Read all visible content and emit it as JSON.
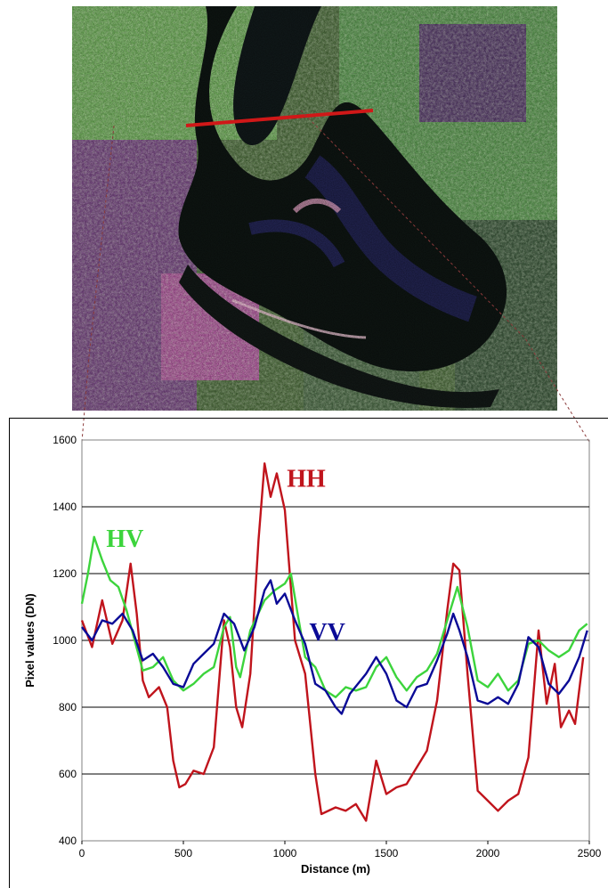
{
  "chart_data": {
    "type": "line",
    "title": "",
    "xlabel": "Distance (m)",
    "ylabel": "Pixel values (DN)",
    "xlim": [
      0,
      2500
    ],
    "ylim": [
      400,
      1600
    ],
    "xticks": [
      "0",
      "500",
      "1000",
      "1500",
      "2000",
      "2500"
    ],
    "yticks": [
      "400",
      "600",
      "800",
      "1000",
      "1200",
      "1400",
      "1600"
    ],
    "grid": "horizontal",
    "legend": "inline labels",
    "series": [
      {
        "name": "HH",
        "color": "#c0141c",
        "points": [
          [
            0,
            1060
          ],
          [
            50,
            980
          ],
          [
            100,
            1120
          ],
          [
            150,
            990
          ],
          [
            200,
            1060
          ],
          [
            240,
            1230
          ],
          [
            270,
            1080
          ],
          [
            300,
            880
          ],
          [
            330,
            830
          ],
          [
            380,
            860
          ],
          [
            420,
            800
          ],
          [
            450,
            640
          ],
          [
            480,
            560
          ],
          [
            510,
            570
          ],
          [
            550,
            610
          ],
          [
            600,
            600
          ],
          [
            650,
            680
          ],
          [
            700,
            1060
          ],
          [
            730,
            980
          ],
          [
            760,
            800
          ],
          [
            790,
            740
          ],
          [
            830,
            900
          ],
          [
            870,
            1300
          ],
          [
            900,
            1530
          ],
          [
            930,
            1430
          ],
          [
            960,
            1500
          ],
          [
            1000,
            1390
          ],
          [
            1050,
            1000
          ],
          [
            1100,
            900
          ],
          [
            1150,
            600
          ],
          [
            1180,
            480
          ],
          [
            1250,
            500
          ],
          [
            1300,
            490
          ],
          [
            1350,
            510
          ],
          [
            1400,
            460
          ],
          [
            1450,
            640
          ],
          [
            1500,
            540
          ],
          [
            1550,
            560
          ],
          [
            1600,
            570
          ],
          [
            1650,
            620
          ],
          [
            1700,
            670
          ],
          [
            1750,
            820
          ],
          [
            1800,
            1090
          ],
          [
            1830,
            1230
          ],
          [
            1860,
            1210
          ],
          [
            1900,
            900
          ],
          [
            1950,
            550
          ],
          [
            2000,
            520
          ],
          [
            2050,
            490
          ],
          [
            2100,
            520
          ],
          [
            2150,
            540
          ],
          [
            2200,
            650
          ],
          [
            2250,
            1030
          ],
          [
            2290,
            810
          ],
          [
            2330,
            930
          ],
          [
            2360,
            740
          ],
          [
            2400,
            790
          ],
          [
            2430,
            750
          ],
          [
            2470,
            950
          ]
        ]
      },
      {
        "name": "HV",
        "color": "#3cd43c",
        "points": [
          [
            0,
            1110
          ],
          [
            30,
            1200
          ],
          [
            60,
            1310
          ],
          [
            100,
            1240
          ],
          [
            140,
            1180
          ],
          [
            180,
            1160
          ],
          [
            220,
            1090
          ],
          [
            260,
            1000
          ],
          [
            300,
            910
          ],
          [
            350,
            920
          ],
          [
            400,
            950
          ],
          [
            450,
            880
          ],
          [
            500,
            850
          ],
          [
            550,
            870
          ],
          [
            600,
            900
          ],
          [
            650,
            920
          ],
          [
            700,
            1040
          ],
          [
            730,
            1070
          ],
          [
            760,
            920
          ],
          [
            780,
            890
          ],
          [
            830,
            1030
          ],
          [
            900,
            1120
          ],
          [
            950,
            1150
          ],
          [
            1000,
            1170
          ],
          [
            1030,
            1200
          ],
          [
            1060,
            1090
          ],
          [
            1100,
            950
          ],
          [
            1150,
            920
          ],
          [
            1200,
            850
          ],
          [
            1250,
            830
          ],
          [
            1300,
            860
          ],
          [
            1350,
            850
          ],
          [
            1400,
            860
          ],
          [
            1450,
            920
          ],
          [
            1500,
            950
          ],
          [
            1550,
            890
          ],
          [
            1600,
            850
          ],
          [
            1650,
            890
          ],
          [
            1700,
            910
          ],
          [
            1750,
            960
          ],
          [
            1800,
            1060
          ],
          [
            1850,
            1160
          ],
          [
            1900,
            1040
          ],
          [
            1950,
            880
          ],
          [
            2000,
            860
          ],
          [
            2050,
            900
          ],
          [
            2100,
            850
          ],
          [
            2150,
            880
          ],
          [
            2200,
            990
          ],
          [
            2250,
            1000
          ],
          [
            2300,
            970
          ],
          [
            2350,
            950
          ],
          [
            2400,
            970
          ],
          [
            2450,
            1030
          ],
          [
            2490,
            1050
          ]
        ]
      },
      {
        "name": "VV",
        "color": "#0a0a96",
        "points": [
          [
            0,
            1040
          ],
          [
            50,
            1000
          ],
          [
            100,
            1060
          ],
          [
            150,
            1050
          ],
          [
            200,
            1080
          ],
          [
            250,
            1030
          ],
          [
            300,
            940
          ],
          [
            350,
            960
          ],
          [
            400,
            920
          ],
          [
            450,
            870
          ],
          [
            500,
            860
          ],
          [
            550,
            930
          ],
          [
            600,
            960
          ],
          [
            650,
            990
          ],
          [
            700,
            1080
          ],
          [
            750,
            1050
          ],
          [
            800,
            970
          ],
          [
            850,
            1040
          ],
          [
            900,
            1150
          ],
          [
            930,
            1180
          ],
          [
            960,
            1110
          ],
          [
            1000,
            1140
          ],
          [
            1050,
            1060
          ],
          [
            1100,
            990
          ],
          [
            1150,
            870
          ],
          [
            1200,
            850
          ],
          [
            1250,
            800
          ],
          [
            1280,
            780
          ],
          [
            1320,
            840
          ],
          [
            1400,
            900
          ],
          [
            1450,
            950
          ],
          [
            1500,
            900
          ],
          [
            1550,
            820
          ],
          [
            1600,
            800
          ],
          [
            1650,
            860
          ],
          [
            1700,
            870
          ],
          [
            1750,
            940
          ],
          [
            1800,
            1020
          ],
          [
            1830,
            1080
          ],
          [
            1860,
            1030
          ],
          [
            1900,
            950
          ],
          [
            1950,
            820
          ],
          [
            2000,
            810
          ],
          [
            2050,
            830
          ],
          [
            2100,
            810
          ],
          [
            2150,
            870
          ],
          [
            2200,
            1010
          ],
          [
            2250,
            980
          ],
          [
            2300,
            870
          ],
          [
            2350,
            840
          ],
          [
            2400,
            880
          ],
          [
            2450,
            950
          ],
          [
            2490,
            1030
          ]
        ]
      }
    ]
  }
}
